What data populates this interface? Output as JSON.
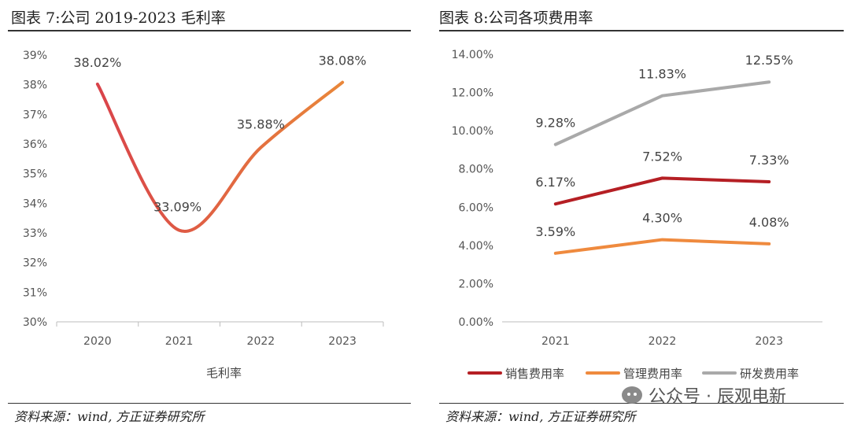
{
  "left": {
    "title": "图表 7:公司 2019-2023 毛利率",
    "source": "资料来源：wind, 方正证券研究所"
  },
  "right": {
    "title": "图表 8:公司各项费用率",
    "source": "资料来源：wind, 方正证券研究所"
  },
  "watermark": "公众号 · 辰观电新",
  "chart_data": [
    {
      "type": "line",
      "categories": [
        "2020",
        "2021",
        "2022",
        "2023"
      ],
      "series": [
        {
          "name": "毛利率",
          "values": [
            38.02,
            33.09,
            35.88,
            38.08
          ],
          "labels": [
            "38.02%",
            "33.09%",
            "35.88%",
            "38.08%"
          ],
          "gradient": [
            "#d9434a",
            "#e9873a"
          ]
        }
      ],
      "yticks": [
        "30%",
        "31%",
        "32%",
        "33%",
        "34%",
        "35%",
        "36%",
        "37%",
        "38%",
        "39%"
      ],
      "ylim": [
        30,
        39
      ],
      "legend": "bottom"
    },
    {
      "type": "line",
      "categories": [
        "2021",
        "2022",
        "2023"
      ],
      "series": [
        {
          "name": "销售费用率",
          "values": [
            6.17,
            7.52,
            7.33
          ],
          "labels": [
            "6.17%",
            "7.52%",
            "7.33%"
          ],
          "color": "#b51f24"
        },
        {
          "name": "管理费用率",
          "values": [
            3.59,
            4.3,
            4.08
          ],
          "labels": [
            "3.59%",
            "4.30%",
            "4.08%"
          ],
          "color": "#ef8a3e"
        },
        {
          "name": "研发费用率",
          "values": [
            9.28,
            11.83,
            12.55
          ],
          "labels": [
            "9.28%",
            "11.83%",
            "12.55%"
          ],
          "color": "#a9a9a9"
        }
      ],
      "yticks": [
        "0.00%",
        "2.00%",
        "4.00%",
        "6.00%",
        "8.00%",
        "10.00%",
        "12.00%",
        "14.00%"
      ],
      "ylim": [
        0,
        14
      ],
      "legend": "bottom"
    }
  ]
}
